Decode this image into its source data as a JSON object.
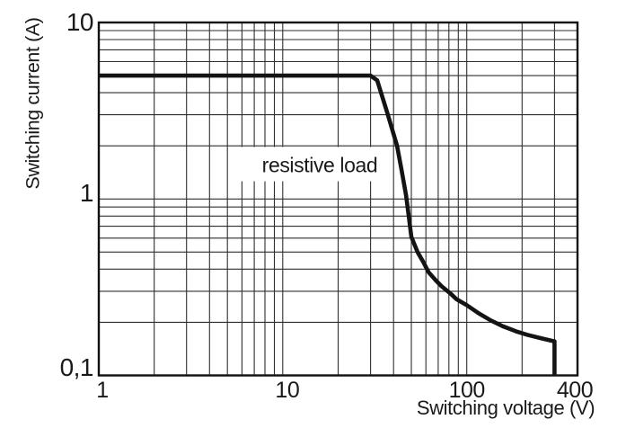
{
  "chart_data": {
    "type": "line",
    "title": "",
    "xlabel": "Switching voltage (V)",
    "ylabel": "Switching current (A)",
    "x_scale": "log",
    "y_scale": "log",
    "xlim": [
      1,
      400
    ],
    "ylim": [
      0.1,
      10
    ],
    "grid": true,
    "legend": false,
    "x_ticks": [
      {
        "value": 1,
        "label": "1"
      },
      {
        "value": 10,
        "label": "10"
      },
      {
        "value": 100,
        "label": "100"
      },
      {
        "value": 400,
        "label": "400"
      }
    ],
    "y_ticks": [
      {
        "value": 10,
        "label": "10"
      },
      {
        "value": 1,
        "label": "1"
      },
      {
        "value": 0.1,
        "label": "0,1"
      }
    ],
    "x_gridlines": [
      2,
      3,
      4,
      5,
      6,
      7,
      8,
      9,
      10,
      20,
      30,
      40,
      50,
      60,
      70,
      80,
      90,
      100,
      200,
      300
    ],
    "y_gridlines": [
      0.2,
      0.3,
      0.4,
      0.5,
      0.6,
      0.7,
      0.8,
      0.9,
      1,
      2,
      3,
      4,
      5,
      6,
      7,
      8,
      9
    ],
    "series": [
      {
        "name": "resistive load",
        "points": [
          [
            1,
            5
          ],
          [
            30,
            5
          ],
          [
            32.6,
            4.7
          ],
          [
            36.9,
            3.1
          ],
          [
            41.8,
            2.0
          ],
          [
            44.3,
            1.45
          ],
          [
            46.8,
            1.05
          ],
          [
            48.4,
            0.8
          ],
          [
            50,
            0.61
          ],
          [
            54,
            0.5
          ],
          [
            58,
            0.44
          ],
          [
            62,
            0.385
          ],
          [
            68,
            0.345
          ],
          [
            73,
            0.32
          ],
          [
            82,
            0.29
          ],
          [
            88,
            0.27
          ],
          [
            100,
            0.25
          ],
          [
            116,
            0.225
          ],
          [
            135,
            0.205
          ],
          [
            157,
            0.19
          ],
          [
            185,
            0.178
          ],
          [
            213,
            0.17
          ],
          [
            250,
            0.163
          ],
          [
            292,
            0.157
          ],
          [
            300,
            0.156
          ],
          [
            300,
            0.1
          ]
        ]
      }
    ],
    "annotation": {
      "text": "resistive load",
      "x": 15.9,
      "y": 1.55,
      "mask_x": [
        5.2,
        38.8
      ],
      "mask_y": [
        1.26,
        1.97
      ]
    },
    "colors": {
      "curve": "#141414",
      "grid": "#2e2e2e",
      "axis": "#101010",
      "text": "#1a1a1a",
      "background": "#ffffff"
    }
  }
}
